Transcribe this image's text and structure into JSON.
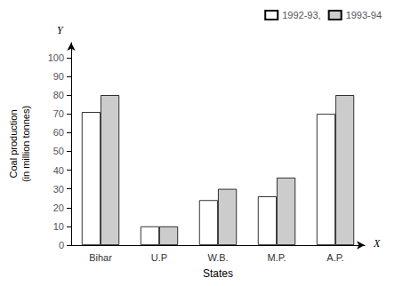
{
  "chart_data": {
    "type": "bar",
    "x_label": "States",
    "y_label": "Coal production\n(in million tonnes)",
    "categories": [
      "Bihar",
      "U.P",
      "W.B.",
      "M.P.",
      "A.P."
    ],
    "series": [
      {
        "name": "1992-93,",
        "color": "#ffffff",
        "values": [
          71,
          10,
          24,
          26,
          70
        ]
      },
      {
        "name": "1993-94",
        "color": "#cccccc",
        "values": [
          80,
          10,
          30,
          36,
          80
        ]
      }
    ],
    "ylim": [
      0,
      108
    ],
    "yticks": [
      0,
      10,
      20,
      30,
      40,
      50,
      60,
      70,
      80,
      90,
      100
    ],
    "grid": false,
    "legend": "upper right",
    "annotations": [
      "Y",
      "X"
    ]
  }
}
